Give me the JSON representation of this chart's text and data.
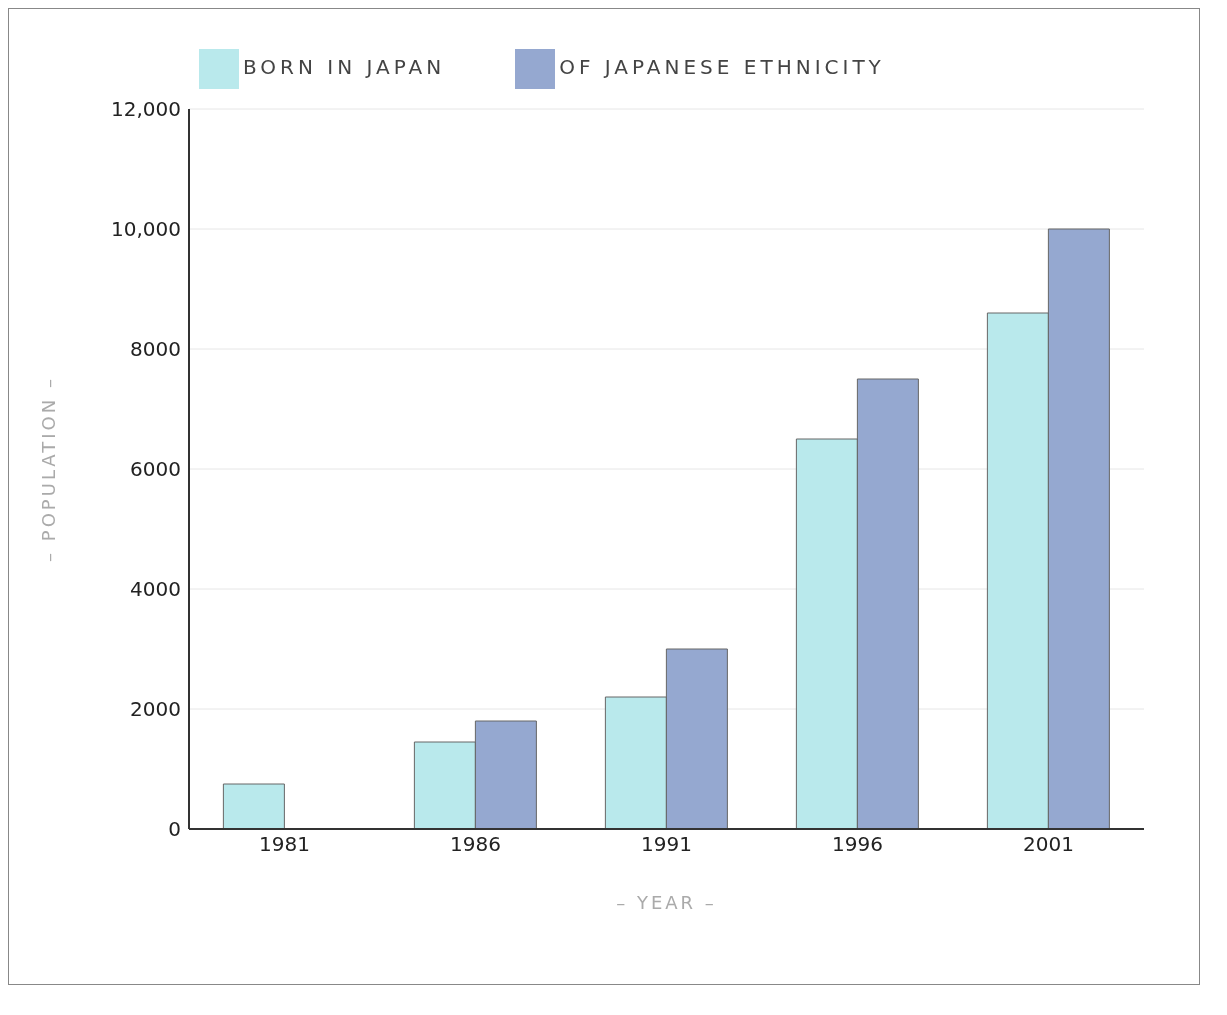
{
  "chart_data": {
    "type": "bar",
    "xlabel": "– YEAR –",
    "ylabel": "– POPULATION –",
    "categories": [
      "1981",
      "1986",
      "1991",
      "1996",
      "2001"
    ],
    "series": [
      {
        "name": "BORN IN JAPAN",
        "color": "#b9e9ec",
        "values": [
          750,
          1450,
          2200,
          6500,
          8600
        ]
      },
      {
        "name": "OF JAPANESE ETHNICITY",
        "color": "#95a8d0",
        "values": [
          null,
          1800,
          3000,
          7500,
          10000
        ]
      }
    ],
    "ylim": [
      0,
      12000
    ],
    "yticks": [
      0,
      2000,
      4000,
      6000,
      8000,
      {
        "value": 10000,
        "label": "10,000"
      },
      {
        "value": 12000,
        "label": "12,000"
      }
    ],
    "grid": "y",
    "legend": "top left"
  }
}
